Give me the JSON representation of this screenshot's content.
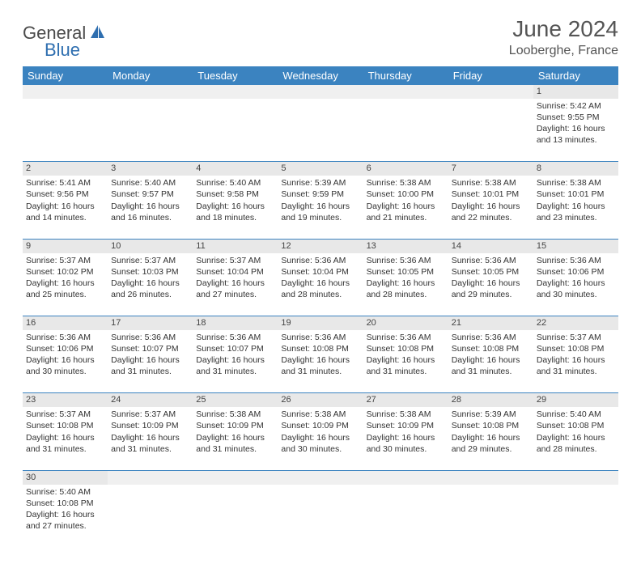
{
  "logo": {
    "general": "General",
    "blue": "Blue"
  },
  "title": "June 2024",
  "location": "Looberghe, France",
  "colors": {
    "header_bg": "#3b83c0",
    "header_text": "#ffffff",
    "daynum_bg": "#e8e8e8",
    "border": "#3b83c0",
    "logo_gray": "#4a4a4a",
    "logo_blue": "#2f6fb0"
  },
  "daysOfWeek": [
    "Sunday",
    "Monday",
    "Tuesday",
    "Wednesday",
    "Thursday",
    "Friday",
    "Saturday"
  ],
  "weeks": [
    [
      null,
      null,
      null,
      null,
      null,
      null,
      {
        "n": "1",
        "sr": "5:42 AM",
        "ss": "9:55 PM",
        "dl": "16 hours and 13 minutes."
      }
    ],
    [
      {
        "n": "2",
        "sr": "5:41 AM",
        "ss": "9:56 PM",
        "dl": "16 hours and 14 minutes."
      },
      {
        "n": "3",
        "sr": "5:40 AM",
        "ss": "9:57 PM",
        "dl": "16 hours and 16 minutes."
      },
      {
        "n": "4",
        "sr": "5:40 AM",
        "ss": "9:58 PM",
        "dl": "16 hours and 18 minutes."
      },
      {
        "n": "5",
        "sr": "5:39 AM",
        "ss": "9:59 PM",
        "dl": "16 hours and 19 minutes."
      },
      {
        "n": "6",
        "sr": "5:38 AM",
        "ss": "10:00 PM",
        "dl": "16 hours and 21 minutes."
      },
      {
        "n": "7",
        "sr": "5:38 AM",
        "ss": "10:01 PM",
        "dl": "16 hours and 22 minutes."
      },
      {
        "n": "8",
        "sr": "5:38 AM",
        "ss": "10:01 PM",
        "dl": "16 hours and 23 minutes."
      }
    ],
    [
      {
        "n": "9",
        "sr": "5:37 AM",
        "ss": "10:02 PM",
        "dl": "16 hours and 25 minutes."
      },
      {
        "n": "10",
        "sr": "5:37 AM",
        "ss": "10:03 PM",
        "dl": "16 hours and 26 minutes."
      },
      {
        "n": "11",
        "sr": "5:37 AM",
        "ss": "10:04 PM",
        "dl": "16 hours and 27 minutes."
      },
      {
        "n": "12",
        "sr": "5:36 AM",
        "ss": "10:04 PM",
        "dl": "16 hours and 28 minutes."
      },
      {
        "n": "13",
        "sr": "5:36 AM",
        "ss": "10:05 PM",
        "dl": "16 hours and 28 minutes."
      },
      {
        "n": "14",
        "sr": "5:36 AM",
        "ss": "10:05 PM",
        "dl": "16 hours and 29 minutes."
      },
      {
        "n": "15",
        "sr": "5:36 AM",
        "ss": "10:06 PM",
        "dl": "16 hours and 30 minutes."
      }
    ],
    [
      {
        "n": "16",
        "sr": "5:36 AM",
        "ss": "10:06 PM",
        "dl": "16 hours and 30 minutes."
      },
      {
        "n": "17",
        "sr": "5:36 AM",
        "ss": "10:07 PM",
        "dl": "16 hours and 31 minutes."
      },
      {
        "n": "18",
        "sr": "5:36 AM",
        "ss": "10:07 PM",
        "dl": "16 hours and 31 minutes."
      },
      {
        "n": "19",
        "sr": "5:36 AM",
        "ss": "10:08 PM",
        "dl": "16 hours and 31 minutes."
      },
      {
        "n": "20",
        "sr": "5:36 AM",
        "ss": "10:08 PM",
        "dl": "16 hours and 31 minutes."
      },
      {
        "n": "21",
        "sr": "5:36 AM",
        "ss": "10:08 PM",
        "dl": "16 hours and 31 minutes."
      },
      {
        "n": "22",
        "sr": "5:37 AM",
        "ss": "10:08 PM",
        "dl": "16 hours and 31 minutes."
      }
    ],
    [
      {
        "n": "23",
        "sr": "5:37 AM",
        "ss": "10:08 PM",
        "dl": "16 hours and 31 minutes."
      },
      {
        "n": "24",
        "sr": "5:37 AM",
        "ss": "10:09 PM",
        "dl": "16 hours and 31 minutes."
      },
      {
        "n": "25",
        "sr": "5:38 AM",
        "ss": "10:09 PM",
        "dl": "16 hours and 31 minutes."
      },
      {
        "n": "26",
        "sr": "5:38 AM",
        "ss": "10:09 PM",
        "dl": "16 hours and 30 minutes."
      },
      {
        "n": "27",
        "sr": "5:38 AM",
        "ss": "10:09 PM",
        "dl": "16 hours and 30 minutes."
      },
      {
        "n": "28",
        "sr": "5:39 AM",
        "ss": "10:08 PM",
        "dl": "16 hours and 29 minutes."
      },
      {
        "n": "29",
        "sr": "5:40 AM",
        "ss": "10:08 PM",
        "dl": "16 hours and 28 minutes."
      }
    ],
    [
      {
        "n": "30",
        "sr": "5:40 AM",
        "ss": "10:08 PM",
        "dl": "16 hours and 27 minutes."
      },
      null,
      null,
      null,
      null,
      null,
      null
    ]
  ],
  "labels": {
    "sunrise": "Sunrise:",
    "sunset": "Sunset:",
    "daylight": "Daylight:"
  }
}
